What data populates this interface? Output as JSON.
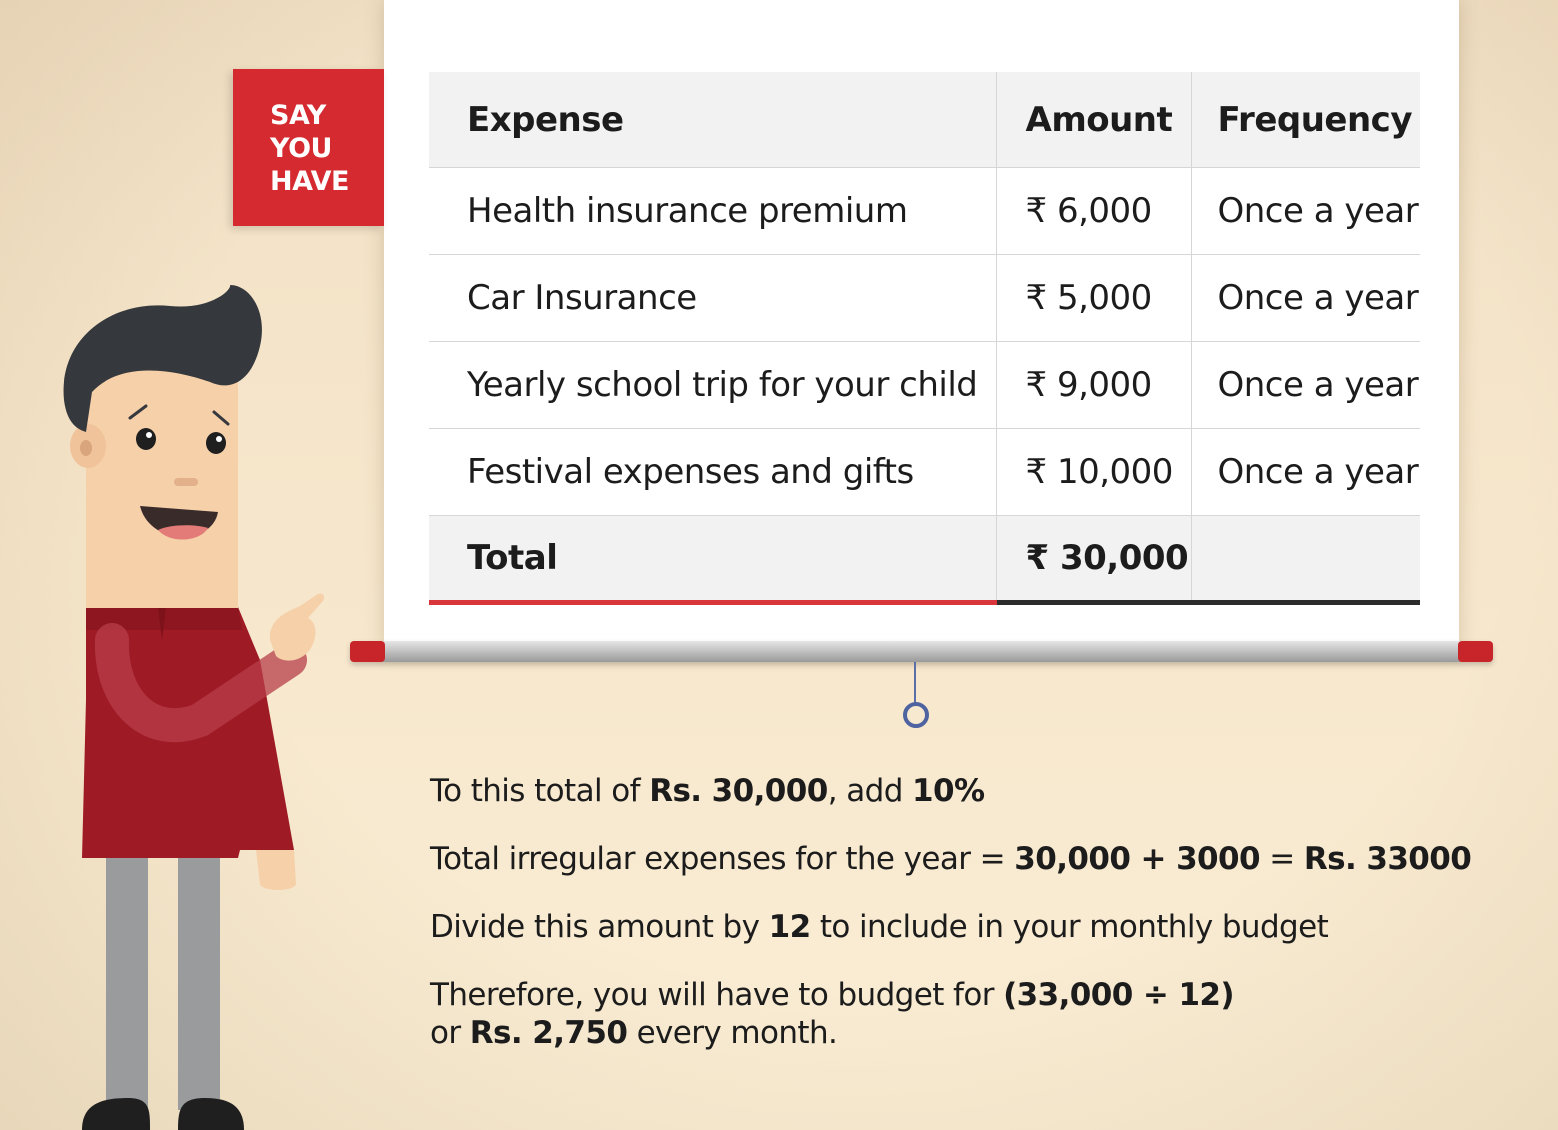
{
  "tag": {
    "text": "SAY\nYOU\nHAVE",
    "color": "#d42a30"
  },
  "table": {
    "headers": [
      "Expense",
      "Amount",
      "Frequency"
    ],
    "rows": [
      [
        "Health insurance premium",
        "₹ 6,000",
        "Once a year"
      ],
      [
        "Car Insurance",
        "₹ 5,000",
        "Once a year"
      ],
      [
        "Yearly school trip for your child",
        "₹ 9,000",
        "Once a year"
      ],
      [
        "Festival expenses and gifts",
        "₹ 10,000",
        "Once a year"
      ]
    ],
    "total": {
      "label": "Total",
      "amount": "₹ 30,000",
      "frequency": ""
    },
    "accent_color": "#d8363a"
  },
  "notes": {
    "line1": {
      "a": "To this total of ",
      "b": "Rs. 30,000",
      "c": ", add ",
      "d": "10%"
    },
    "line2": {
      "a": "Total irregular expenses for the year = ",
      "b": "30,000 + 3000",
      "c": " = ",
      "d": "Rs. 33000"
    },
    "line3": {
      "a": "Divide this amount by ",
      "b": "12",
      "c": " to include in your monthly budget"
    },
    "line4": {
      "a": "Therefore, you will have to budget for ",
      "b": "(33,000 ÷ 12)",
      "c": "\nor ",
      "d": "Rs. 2,750",
      "e": " every month."
    }
  },
  "illustration": {
    "character": "cartoon-man-pointing",
    "shirt_color": "#9e1a24",
    "skin_color": "#f5d0a9",
    "hair_color": "#35383c",
    "trouser_color": "#9a9b9d"
  }
}
